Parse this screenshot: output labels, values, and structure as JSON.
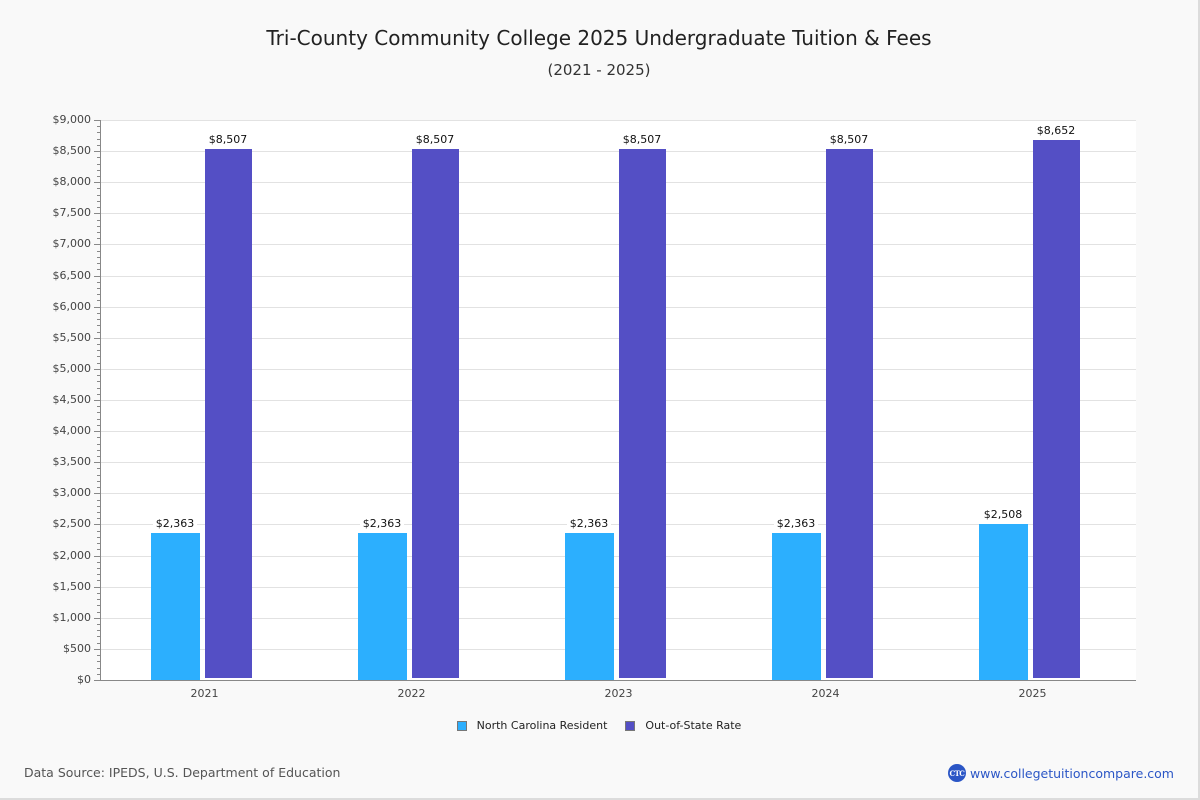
{
  "title": "Tri-County Community College 2025 Undergraduate Tuition & Fees",
  "subtitle": "(2021 - 2025)",
  "colors": {
    "resident": "#2caffe",
    "out_of_state": "#544fc5",
    "gridline": "#e2e2e2",
    "axis": "#888888"
  },
  "legend": {
    "items": [
      {
        "label": "North Carolina Resident",
        "color": "#2caffe"
      },
      {
        "label": "Out-of-State Rate",
        "color": "#544fc5"
      }
    ]
  },
  "y_axis": {
    "labels": [
      "$9,000",
      "$8,500",
      "$8,000",
      "$7,500",
      "$7,000",
      "$6,500",
      "$6,000",
      "$5,500",
      "$5,000",
      "$4,500",
      "$4,000",
      "$3,500",
      "$3,000",
      "$2,500",
      "$2,000",
      "$1,500",
      "$1,000",
      "$500",
      "$0"
    ]
  },
  "footer": {
    "source": "Data Source: IPEDS, U.S. Department of Education",
    "brand_logo": "CTC",
    "brand_url": "www.collegetuitioncompare.com"
  },
  "chart_data": {
    "type": "bar",
    "title": "Tri-County Community College 2025 Undergraduate Tuition & Fees",
    "subtitle": "(2021 - 2025)",
    "xlabel": "",
    "ylabel": "",
    "categories": [
      "2021",
      "2022",
      "2023",
      "2024",
      "2025"
    ],
    "series": [
      {
        "name": "North Carolina Resident",
        "color": "#2caffe",
        "values": [
          2363,
          2363,
          2363,
          2363,
          2508
        ],
        "labels": [
          "$2,363",
          "$2,363",
          "$2,363",
          "$2,363",
          "$2,508"
        ]
      },
      {
        "name": "Out-of-State Rate",
        "color": "#544fc5",
        "values": [
          8507,
          8507,
          8507,
          8507,
          8652
        ],
        "labels": [
          "$8,507",
          "$8,507",
          "$8,507",
          "$8,507",
          "$8,652"
        ]
      }
    ],
    "ylim": [
      0,
      9000
    ],
    "y_tick_step": 500,
    "y_minor_tick_step": 100,
    "grid": true,
    "legend_position": "bottom"
  }
}
